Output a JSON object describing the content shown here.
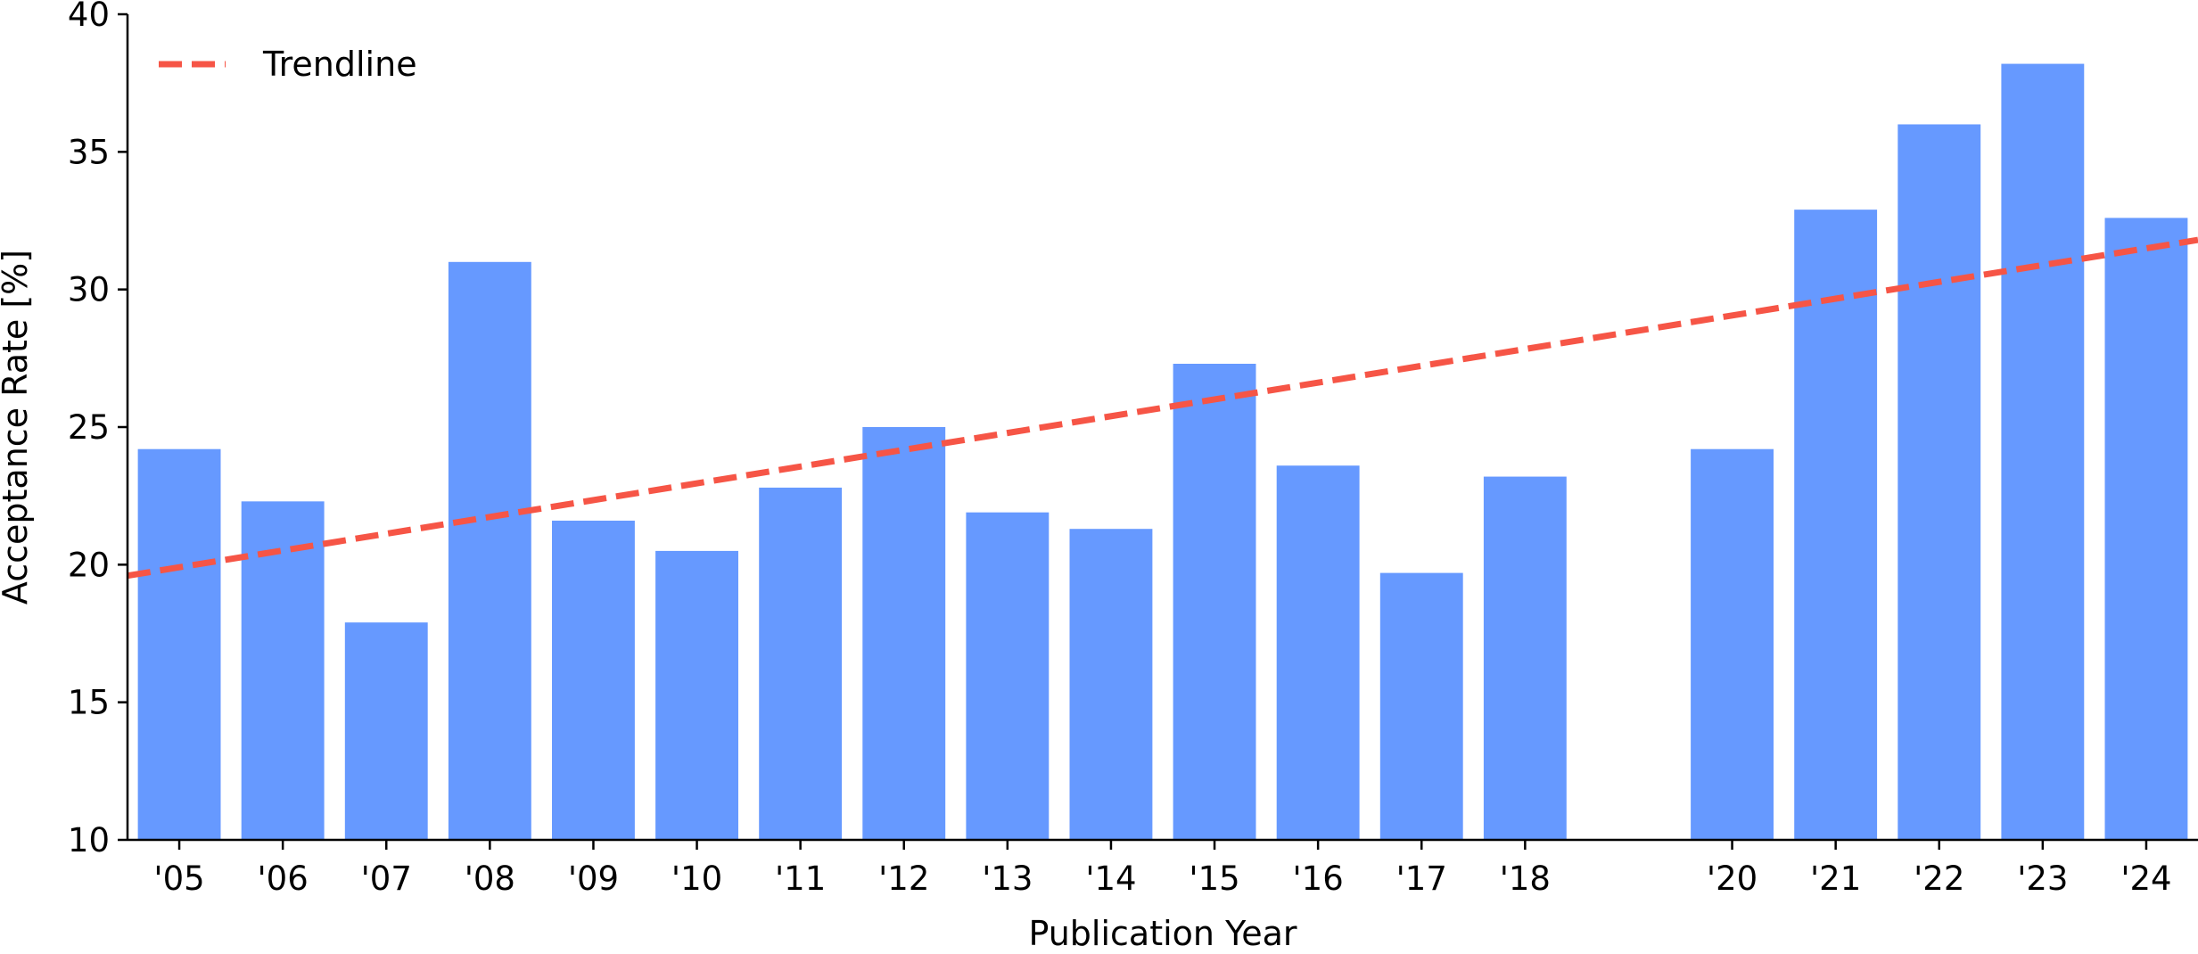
{
  "chart_data": {
    "type": "bar",
    "x": [
      2005,
      2006,
      2007,
      2008,
      2009,
      2010,
      2011,
      2012,
      2013,
      2014,
      2015,
      2016,
      2017,
      2018,
      2020,
      2021,
      2022,
      2023,
      2024
    ],
    "categories": [
      "'05",
      "'06",
      "'07",
      "'08",
      "'09",
      "'10",
      "'11",
      "'12",
      "'13",
      "'14",
      "'15",
      "'16",
      "'17",
      "'18",
      "'20",
      "'21",
      "'22",
      "'23",
      "'24"
    ],
    "values": [
      24.2,
      22.3,
      17.9,
      31.0,
      21.6,
      20.5,
      22.8,
      25.0,
      21.9,
      21.3,
      27.3,
      23.6,
      19.7,
      23.2,
      24.2,
      32.9,
      36.0,
      38.2,
      32.6
    ],
    "xlabel": "Publication Year",
    "ylabel": "Acceptance Rate [%]",
    "ylim": [
      10,
      40
    ],
    "yticks": [
      10,
      15,
      20,
      25,
      30,
      35,
      40
    ],
    "xlim": [
      2004.5,
      2024.5
    ],
    "grid": false,
    "legend": {
      "position": "top-left",
      "entries": [
        "Trendline"
      ]
    },
    "trendline": {
      "name": "Trendline",
      "x": [
        2004.5,
        2024.5
      ],
      "y": [
        19.6,
        31.8
      ],
      "style": "dashed"
    },
    "colors": {
      "bar": "#6699ff",
      "trendline": "#f65546"
    }
  }
}
